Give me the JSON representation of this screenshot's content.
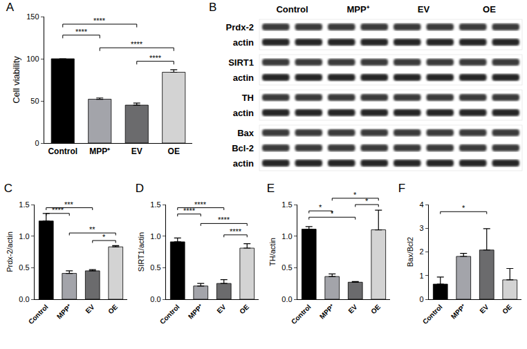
{
  "chart_data": [
    {
      "type": "bar",
      "title": "A",
      "y_label": "Cell viability",
      "categories": [
        "Control",
        "MPP⁺",
        "EV",
        "OE"
      ],
      "values": [
        100,
        52,
        45,
        84
      ],
      "errors": [
        0,
        1.5,
        2.5,
        3
      ],
      "colors": [
        "#000000",
        "#a3a4aa",
        "#6b6b6d",
        "#d3d3d3"
      ],
      "ylim": [
        0,
        150
      ],
      "yticks": [
        0,
        50,
        100,
        150
      ],
      "grid": false,
      "annotations": [
        {
          "from": "Control",
          "to": "EV",
          "text": "****",
          "y": 141
        },
        {
          "from": "Control",
          "to": "MPP⁺",
          "text": "****",
          "y": 128
        },
        {
          "from": "MPP⁺",
          "to": "OE",
          "text": "****",
          "y": 113
        },
        {
          "from": "EV",
          "to": "OE",
          "text": "****",
          "y": 97
        }
      ]
    },
    {
      "type": "bar",
      "title": "C",
      "y_label": "Prdx-2/actin",
      "categories": [
        "Control",
        "MPP⁺",
        "EV",
        "OE"
      ],
      "values": [
        1.24,
        0.41,
        0.45,
        0.83
      ],
      "errors": [
        0.12,
        0.04,
        0.02,
        0.02
      ],
      "colors": [
        "#000000",
        "#a3a4aa",
        "#6b6b6d",
        "#d3d3d3"
      ],
      "ylim": [
        0,
        1.5
      ],
      "yticks": [
        {
          "value": 0,
          "label": "0.0"
        },
        {
          "value": 0.5,
          "label": "0.5"
        },
        {
          "value": 1,
          "label": "1.0"
        },
        {
          "value": 1.5,
          "label": "1.5"
        }
      ],
      "grid": false,
      "annotations": [
        {
          "from": "Control",
          "to": "EV",
          "text": "***",
          "y": 1.45
        },
        {
          "from": "Control",
          "to": "MPP⁺",
          "text": "****",
          "y": 1.36
        },
        {
          "from": "MPP⁺",
          "to": "OE",
          "text": "**",
          "y": 1.05
        },
        {
          "from": "EV",
          "to": "OE",
          "text": "*",
          "y": 0.93
        }
      ]
    },
    {
      "type": "bar",
      "title": "D",
      "y_label": "SIRT1/actin",
      "categories": [
        "Control",
        "MPP⁺",
        "EV",
        "OE"
      ],
      "values": [
        0.91,
        0.21,
        0.25,
        0.81
      ],
      "errors": [
        0.06,
        0.04,
        0.06,
        0.07
      ],
      "colors": [
        "#000000",
        "#a3a4aa",
        "#6b6b6d",
        "#d3d3d3"
      ],
      "ylim": [
        0,
        1.5
      ],
      "yticks": [
        {
          "value": 0,
          "label": "0.0"
        },
        {
          "value": 0.5,
          "label": "0.5"
        },
        {
          "value": 1,
          "label": "1.0"
        },
        {
          "value": 1.5,
          "label": "1.5"
        }
      ],
      "grid": false,
      "annotations": [
        {
          "from": "Control",
          "to": "EV",
          "text": "****",
          "y": 1.45
        },
        {
          "from": "Control",
          "to": "MPP⁺",
          "text": "****",
          "y": 1.35
        },
        {
          "from": "MPP⁺",
          "to": "OE",
          "text": "****",
          "y": 1.2
        },
        {
          "from": "EV",
          "to": "OE",
          "text": "****",
          "y": 1.02
        }
      ]
    },
    {
      "type": "bar",
      "title": "E",
      "y_label": "TH/actin",
      "categories": [
        "Control",
        "MPP⁺",
        "EV",
        "OE"
      ],
      "values": [
        1.11,
        0.36,
        0.27,
        1.1
      ],
      "errors": [
        0.04,
        0.04,
        0.01,
        0.31
      ],
      "colors": [
        "#000000",
        "#a3a4aa",
        "#6b6b6d",
        "#d3d3d3"
      ],
      "ylim": [
        0,
        1.5
      ],
      "yticks": [
        {
          "value": 0,
          "label": "0.0"
        },
        {
          "value": 0.5,
          "label": "0.5"
        },
        {
          "value": 1,
          "label": "1.0"
        },
        {
          "value": 1.5,
          "label": "1.5"
        }
      ],
      "grid": false,
      "annotations": [
        {
          "from": "MPP⁺",
          "to": "OE",
          "text": "*",
          "y": 1.6
        },
        {
          "from": "EV",
          "to": "OE",
          "text": "*",
          "y": 1.5
        },
        {
          "from": "Control",
          "to": "MPP⁺",
          "text": "*",
          "y": 1.4
        },
        {
          "from": "Control",
          "to": "EV",
          "text": "*",
          "y": 1.3
        }
      ]
    },
    {
      "type": "bar",
      "title": "F",
      "y_label": "Bax/Bcl2",
      "categories": [
        "Control",
        "MPP⁺",
        "EV",
        "OE"
      ],
      "values": [
        0.64,
        1.81,
        2.08,
        0.82
      ],
      "errors": [
        0.3,
        0.13,
        0.9,
        0.48
      ],
      "colors": [
        "#000000",
        "#a3a4aa",
        "#6b6b6d",
        "#d3d3d3"
      ],
      "ylim": [
        0,
        4
      ],
      "yticks": [
        0,
        1,
        2,
        3,
        4
      ],
      "grid": false,
      "annotations": [
        {
          "from": "Control",
          "to": "EV",
          "text": "*",
          "y": 3.7
        }
      ]
    }
  ],
  "blot": {
    "title": "B",
    "lanes": [
      "Control",
      "MPP⁺",
      "EV",
      "OE"
    ],
    "groups": [
      [
        "Prdx-2",
        "actin"
      ],
      [
        "SIRT1",
        "actin"
      ],
      [
        "TH",
        "actin"
      ],
      [
        "Bax",
        "Bcl-2",
        "actin"
      ]
    ]
  }
}
